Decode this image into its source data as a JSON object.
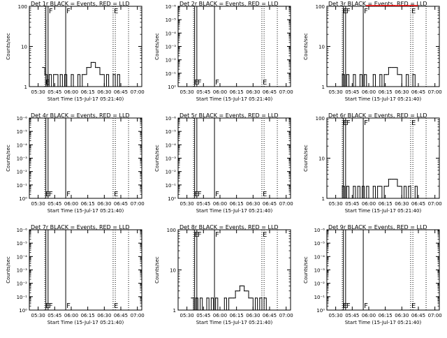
{
  "colors": {
    "events": "#000000",
    "lld": "#ff0000",
    "background": "#ffffff"
  },
  "xlabel": "Start Time (15-Jul-17 05:21:40)",
  "ylabel": "Counts/sec",
  "x_ticks": [
    "05:30",
    "05:45",
    "06:00",
    "06:15",
    "06:30",
    "06:45",
    "07:00"
  ],
  "chart_data": [
    {
      "type": "line",
      "title": "Det 1r BLACK = Events, RED = LLD",
      "xlabel": "Start Time (15-Jul-17 05:21:40)",
      "ylabel": "Counts/sec",
      "yscale": "log",
      "ylim": [
        1,
        100
      ],
      "y_ticks": [
        "1",
        "10",
        "100"
      ],
      "x_ticks": [
        "05:30",
        "05:45",
        "06:00",
        "06:15",
        "06:30",
        "06:45",
        "07:00"
      ],
      "markers": [
        {
          "label": "E",
          "pos": "low"
        },
        {
          "label": "F",
          "pos": "high"
        },
        {
          "label": "F",
          "pos": "high"
        },
        {
          "label": "E",
          "pos": "high"
        }
      ],
      "series": [
        {
          "color": "black",
          "x": [
            "05:34",
            "05:36",
            "05:38",
            "05:40",
            "05:42",
            "05:44",
            "05:46",
            "05:48",
            "05:50",
            "05:52",
            "05:54",
            "05:56",
            "05:58",
            "06:00",
            "06:02",
            "06:04",
            "06:06",
            "06:08",
            "06:10",
            "06:12",
            "06:14",
            "06:16",
            "06:18",
            "06:20",
            "06:22",
            "06:24",
            "06:26",
            "06:28",
            "06:30",
            "06:32",
            "06:34",
            "06:36",
            "06:38",
            "06:40",
            "06:42",
            "06:44"
          ],
          "y": [
            3,
            2,
            1,
            2,
            1,
            2,
            2,
            1,
            2,
            1,
            2,
            1,
            1,
            2,
            1,
            1,
            2,
            1,
            2,
            2,
            3,
            3,
            4,
            4,
            3,
            3,
            2,
            2,
            1,
            2,
            1,
            1,
            2,
            1,
            2,
            1
          ]
        }
      ]
    },
    {
      "type": "line",
      "title": "Det 2r BLACK = Events, RED = LLD",
      "xlabel": "Start Time (15-Jul-17 05:21:40)",
      "ylabel": "Counts/sec",
      "yscale": "log",
      "ylim": [
        1,
        1e-06
      ],
      "y_ticks": [
        "10⁰",
        "10⁻¹",
        "10⁻²",
        "10⁻³",
        "10⁻⁴",
        "10⁻⁵",
        "10⁻⁶"
      ],
      "x_ticks": [
        "05:30",
        "05:45",
        "06:00",
        "06:15",
        "06:30",
        "06:45",
        "07:00"
      ],
      "markers": [
        {
          "label": "E",
          "pos": "low"
        },
        {
          "label": "F",
          "pos": "low"
        },
        {
          "label": "F",
          "pos": "low"
        },
        {
          "label": "E",
          "pos": "low"
        }
      ],
      "series": []
    },
    {
      "type": "line",
      "title": "Det 3r BLACK = Events, RED = LLD",
      "xlabel": "Start Time (15-Jul-17 05:21:40)",
      "ylabel": "Counts/sec",
      "yscale": "log",
      "ylim": [
        1,
        100
      ],
      "y_ticks": [
        "1",
        "10",
        "100"
      ],
      "x_ticks": [
        "05:30",
        "05:45",
        "06:00",
        "06:15",
        "06:30",
        "06:45",
        "07:00"
      ],
      "markers": [
        {
          "label": "E",
          "pos": "high"
        },
        {
          "label": "F",
          "pos": "high"
        },
        {
          "label": "F",
          "pos": "high"
        },
        {
          "label": "E",
          "pos": "high"
        }
      ],
      "series": [
        {
          "color": "black",
          "x": [
            "05:34",
            "05:36",
            "05:38",
            "05:40",
            "05:42",
            "05:44",
            "05:46",
            "05:48",
            "05:50",
            "05:52",
            "05:54",
            "05:56",
            "05:58",
            "06:00",
            "06:02",
            "06:04",
            "06:06",
            "06:08",
            "06:10",
            "06:12",
            "06:14",
            "06:16",
            "06:18",
            "06:20",
            "06:22",
            "06:24",
            "06:26",
            "06:28",
            "06:30",
            "06:32",
            "06:34",
            "06:36",
            "06:38",
            "06:40",
            "06:42",
            "06:44"
          ],
          "y": [
            1,
            2,
            1,
            2,
            1,
            1,
            2,
            1,
            1,
            2,
            1,
            2,
            1,
            1,
            1,
            2,
            1,
            1,
            2,
            1,
            2,
            2,
            3,
            3,
            3,
            3,
            2,
            2,
            1,
            1,
            2,
            1,
            1,
            2,
            1,
            1
          ]
        },
        {
          "color": "red",
          "x": [
            "05:58",
            "06:00",
            "06:02",
            "06:04",
            "06:06",
            "06:08",
            "06:10",
            "06:12",
            "06:14",
            "06:16",
            "06:18",
            "06:20",
            "06:22",
            "06:24",
            "06:26",
            "06:28",
            "06:30",
            "06:32",
            "06:34",
            "06:36",
            "06:38",
            "06:40",
            "06:42",
            "06:44"
          ],
          "y": [
            110,
            108,
            112,
            105,
            110,
            107,
            113,
            106,
            110,
            108,
            111,
            106,
            112,
            107,
            109,
            111,
            106,
            110,
            108,
            112,
            107,
            110,
            109,
            108
          ]
        }
      ]
    },
    {
      "type": "line",
      "title": "Det 4r BLACK = Events, RED = LLD",
      "xlabel": "Start Time (15-Jul-17 05:21:40)",
      "ylabel": "Counts/sec",
      "yscale": "log",
      "ylim": [
        1,
        1e-06
      ],
      "y_ticks": [
        "10⁰",
        "10⁻¹",
        "10⁻²",
        "10⁻³",
        "10⁻⁴",
        "10⁻⁵",
        "10⁻⁶"
      ],
      "x_ticks": [
        "05:30",
        "05:45",
        "06:00",
        "06:15",
        "06:30",
        "06:45",
        "07:00"
      ],
      "markers": [
        {
          "label": "E",
          "pos": "low"
        },
        {
          "label": "F",
          "pos": "low"
        },
        {
          "label": "F",
          "pos": "low"
        },
        {
          "label": "E",
          "pos": "low"
        }
      ],
      "series": []
    },
    {
      "type": "line",
      "title": "Det 5r BLACK = Events, RED = LLD",
      "xlabel": "Start Time (15-Jul-17 05:21:40)",
      "ylabel": "Counts/sec",
      "yscale": "log",
      "ylim": [
        1,
        1e-06
      ],
      "y_ticks": [
        "10⁰",
        "10⁻¹",
        "10⁻²",
        "10⁻³",
        "10⁻⁴",
        "10⁻⁵",
        "10⁻⁶"
      ],
      "x_ticks": [
        "05:30",
        "05:45",
        "06:00",
        "06:15",
        "06:30",
        "06:45",
        "07:00"
      ],
      "markers": [
        {
          "label": "E",
          "pos": "low"
        },
        {
          "label": "F",
          "pos": "low"
        },
        {
          "label": "F",
          "pos": "low"
        },
        {
          "label": "E",
          "pos": "low"
        }
      ],
      "series": []
    },
    {
      "type": "line",
      "title": "Det 6r BLACK = Events, RED = LLD",
      "xlabel": "Start Time (15-Jul-17 05:21:40)",
      "ylabel": "Counts/sec",
      "yscale": "log",
      "ylim": [
        1,
        100
      ],
      "y_ticks": [
        "1",
        "10",
        "100"
      ],
      "x_ticks": [
        "05:30",
        "05:45",
        "06:00",
        "06:15",
        "06:30",
        "06:45",
        "07:00"
      ],
      "markers": [
        {
          "label": "E",
          "pos": "high"
        },
        {
          "label": "F",
          "pos": "high"
        },
        {
          "label": "F",
          "pos": "high"
        },
        {
          "label": "E",
          "pos": "high"
        }
      ],
      "series": [
        {
          "color": "black",
          "x": [
            "05:34",
            "05:36",
            "05:38",
            "05:40",
            "05:42",
            "05:44",
            "05:46",
            "05:48",
            "05:50",
            "05:52",
            "05:54",
            "05:56",
            "05:58",
            "06:00",
            "06:02",
            "06:04",
            "06:06",
            "06:08",
            "06:10",
            "06:12",
            "06:14",
            "06:16",
            "06:18",
            "06:20",
            "06:22",
            "06:24",
            "06:26",
            "06:28",
            "06:30",
            "06:32",
            "06:34",
            "06:36",
            "06:38",
            "06:40",
            "06:42",
            "06:44"
          ],
          "y": [
            1,
            2,
            1,
            2,
            1,
            1,
            2,
            1,
            2,
            1,
            2,
            1,
            2,
            1,
            1,
            2,
            1,
            2,
            2,
            1,
            2,
            2,
            3,
            3,
            3,
            3,
            2,
            2,
            1,
            2,
            1,
            2,
            1,
            1,
            2,
            1
          ]
        }
      ]
    },
    {
      "type": "line",
      "title": "Det 7r BLACK = Events, RED = LLD",
      "xlabel": "Start Time (15-Jul-17 05:21:40)",
      "ylabel": "Counts/sec",
      "yscale": "log",
      "ylim": [
        1,
        1e-06
      ],
      "y_ticks": [
        "10⁰",
        "10⁻¹",
        "10⁻²",
        "10⁻³",
        "10⁻⁴",
        "10⁻⁵",
        "10⁻⁶"
      ],
      "x_ticks": [
        "05:30",
        "05:45",
        "06:00",
        "06:15",
        "06:30",
        "06:45",
        "07:00"
      ],
      "markers": [
        {
          "label": "E",
          "pos": "low"
        },
        {
          "label": "F",
          "pos": "low"
        },
        {
          "label": "F",
          "pos": "low"
        },
        {
          "label": "E",
          "pos": "low"
        }
      ],
      "series": []
    },
    {
      "type": "line",
      "title": "Det 8r BLACK = Events, RED = LLD",
      "xlabel": "Start Time (15-Jul-17 05:21:40)",
      "ylabel": "Counts/sec",
      "yscale": "log",
      "ylim": [
        1,
        100
      ],
      "y_ticks": [
        "1",
        "10",
        "100"
      ],
      "x_ticks": [
        "05:30",
        "05:45",
        "06:00",
        "06:15",
        "06:30",
        "06:45",
        "07:00"
      ],
      "markers": [
        {
          "label": "E",
          "pos": "high"
        },
        {
          "label": "F",
          "pos": "high"
        },
        {
          "label": "F",
          "pos": "high"
        },
        {
          "label": "E",
          "pos": "high"
        }
      ],
      "series": [
        {
          "color": "black",
          "x": [
            "05:34",
            "05:36",
            "05:38",
            "05:40",
            "05:42",
            "05:44",
            "05:46",
            "05:48",
            "05:50",
            "05:52",
            "05:54",
            "05:56",
            "05:58",
            "06:00",
            "06:02",
            "06:04",
            "06:06",
            "06:08",
            "06:10",
            "06:12",
            "06:14",
            "06:16",
            "06:18",
            "06:20",
            "06:22",
            "06:24",
            "06:26",
            "06:28",
            "06:30",
            "06:32",
            "06:34",
            "06:36",
            "06:38",
            "06:40",
            "06:42",
            "06:44"
          ],
          "y": [
            2,
            1,
            2,
            1,
            2,
            1,
            1,
            2,
            1,
            2,
            1,
            2,
            1,
            1,
            1,
            2,
            1,
            2,
            2,
            2,
            3,
            3,
            4,
            4,
            3,
            3,
            2,
            2,
            1,
            2,
            1,
            2,
            1,
            2,
            1,
            1
          ]
        }
      ]
    },
    {
      "type": "line",
      "title": "Det 9r BLACK = Events, RED = LLD",
      "xlabel": "Start Time (15-Jul-17 05:21:40)",
      "ylabel": "Counts/sec",
      "yscale": "log",
      "ylim": [
        1,
        1e-06
      ],
      "y_ticks": [
        "10⁰",
        "10⁻¹",
        "10⁻²",
        "10⁻³",
        "10⁻⁴",
        "10⁻⁵",
        "10⁻⁶"
      ],
      "x_ticks": [
        "05:30",
        "05:45",
        "06:00",
        "06:15",
        "06:30",
        "06:45",
        "07:00"
      ],
      "markers": [
        {
          "label": "E",
          "pos": "low"
        },
        {
          "label": "F",
          "pos": "low"
        },
        {
          "label": "F",
          "pos": "low"
        },
        {
          "label": "E",
          "pos": "low"
        }
      ],
      "series": []
    }
  ],
  "time_lines": {
    "solid": [
      "05:37",
      "05:39",
      "05:55"
    ],
    "dotted": [
      "05:36",
      "06:38",
      "06:40",
      "06:52"
    ]
  }
}
